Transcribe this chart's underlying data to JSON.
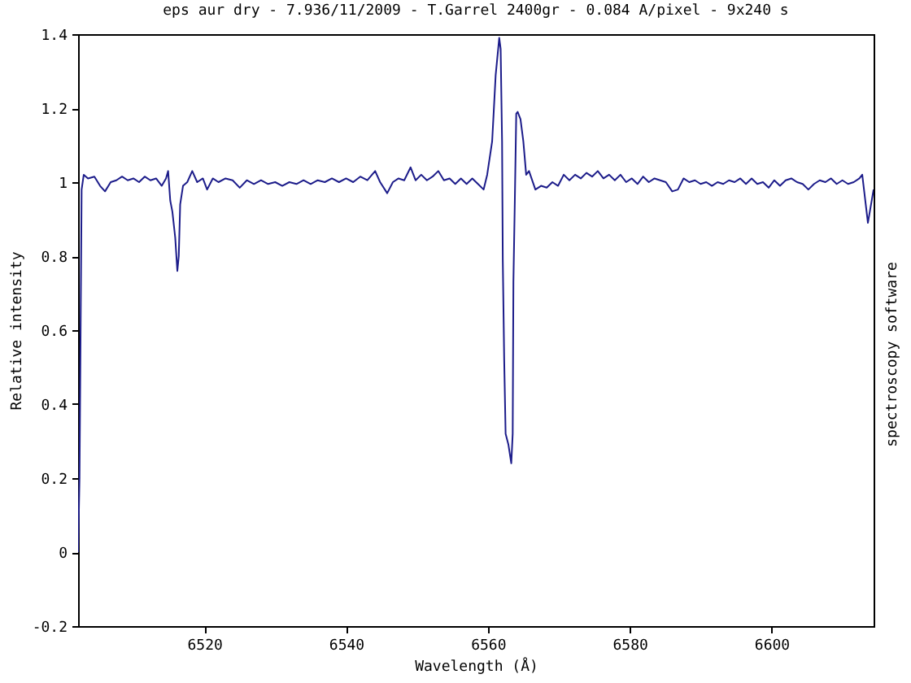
{
  "chart_data": {
    "type": "line",
    "title": "eps aur dry - 7.936/11/2009 - T.Garrel 2400gr - 0.084 A/pixel - 9x240 s",
    "xlabel": "Wavelength (Å)",
    "ylabel": "Relative intensity",
    "annotations": [
      "spectroscopy software"
    ],
    "x": [
      6502.2,
      6502.4,
      6502.7,
      6503.0,
      6503.6,
      6504.5,
      6505.3,
      6506.0,
      6506.8,
      6507.6,
      6508.4,
      6509.2,
      6510.0,
      6510.8,
      6511.6,
      6512.4,
      6513.2,
      6514.0,
      6514.6,
      6514.9,
      6515.2,
      6515.5,
      6515.9,
      6516.2,
      6516.4,
      6516.6,
      6517.0,
      6517.6,
      6518.3,
      6519.0,
      6519.8,
      6520.4,
      6521.2,
      6522.0,
      6523.0,
      6524.0,
      6525.0,
      6526.0,
      6527.0,
      6528.0,
      6529.0,
      6530.0,
      6531.0,
      6532.0,
      6533.0,
      6534.0,
      6535.0,
      6536.0,
      6537.0,
      6538.0,
      6539.0,
      6540.0,
      6541.0,
      6542.0,
      6543.0,
      6544.1,
      6544.8,
      6545.8,
      6546.6,
      6547.4,
      6548.2,
      6549.1,
      6549.8,
      6550.6,
      6551.4,
      6552.2,
      6553.0,
      6553.8,
      6554.6,
      6555.4,
      6556.2,
      6557.0,
      6557.8,
      6558.6,
      6559.4,
      6559.9,
      6560.6,
      6561.1,
      6561.6,
      6561.8,
      6562.0,
      6562.1,
      6562.3,
      6562.5,
      6562.9,
      6563.3,
      6563.5,
      6563.6,
      6563.8,
      6564.0,
      6564.2,
      6564.6,
      6565.0,
      6565.4,
      6565.8,
      6566.7,
      6567.5,
      6568.3,
      6569.1,
      6569.9,
      6570.7,
      6571.5,
      6572.3,
      6573.1,
      6573.9,
      6574.7,
      6575.5,
      6576.3,
      6577.1,
      6577.9,
      6578.7,
      6579.5,
      6580.3,
      6581.1,
      6581.9,
      6582.7,
      6583.5,
      6584.3,
      6585.1,
      6586.0,
      6586.8,
      6587.6,
      6588.4,
      6589.2,
      6590.0,
      6590.8,
      6591.6,
      6592.4,
      6593.2,
      6594.0,
      6594.8,
      6595.6,
      6596.4,
      6597.2,
      6598.0,
      6598.8,
      6599.6,
      6600.4,
      6601.2,
      6602.0,
      6602.8,
      6603.6,
      6604.4,
      6605.2,
      6606.0,
      6606.8,
      6607.6,
      6608.4,
      6609.2,
      6610.0,
      6610.8,
      6611.6,
      6612.4,
      6612.8,
      6613.6,
      6614.4
    ],
    "series": [
      {
        "color": "#1c1c8a",
        "values": [
          0.0,
          0.2,
          0.98,
          1.02,
          1.01,
          1.015,
          0.99,
          0.975,
          1.0,
          1.005,
          1.015,
          1.005,
          1.01,
          1.0,
          1.015,
          1.005,
          1.01,
          0.99,
          1.01,
          1.03,
          0.95,
          0.92,
          0.85,
          0.76,
          0.8,
          0.94,
          0.99,
          1.0,
          1.03,
          1.0,
          1.01,
          0.98,
          1.01,
          1.0,
          1.01,
          1.005,
          0.985,
          1.005,
          0.995,
          1.005,
          0.995,
          1.0,
          0.99,
          1.0,
          0.995,
          1.005,
          0.995,
          1.005,
          1.0,
          1.01,
          1.0,
          1.01,
          1.0,
          1.015,
          1.005,
          1.03,
          1.0,
          0.97,
          1.0,
          1.01,
          1.005,
          1.04,
          1.005,
          1.02,
          1.005,
          1.015,
          1.03,
          1.005,
          1.01,
          0.995,
          1.01,
          0.995,
          1.01,
          0.995,
          0.98,
          1.02,
          1.11,
          1.29,
          1.39,
          1.36,
          1.11,
          0.79,
          0.52,
          0.32,
          0.29,
          0.24,
          0.32,
          0.73,
          0.95,
          1.185,
          1.19,
          1.17,
          1.11,
          1.02,
          1.03,
          0.98,
          0.99,
          0.985,
          1.0,
          0.99,
          1.02,
          1.005,
          1.02,
          1.01,
          1.025,
          1.015,
          1.03,
          1.01,
          1.02,
          1.005,
          1.02,
          1.0,
          1.01,
          0.995,
          1.015,
          1.0,
          1.01,
          1.005,
          1.0,
          0.975,
          0.98,
          1.01,
          1.0,
          1.005,
          0.995,
          1.0,
          0.99,
          1.0,
          0.995,
          1.005,
          1.0,
          1.01,
          0.995,
          1.01,
          0.995,
          1.0,
          0.985,
          1.005,
          0.99,
          1.005,
          1.01,
          1.0,
          0.995,
          0.98,
          0.995,
          1.005,
          1.0,
          1.01,
          0.995,
          1.005,
          0.995,
          1.0,
          1.01,
          1.02,
          0.89,
          0.98
        ]
      }
    ],
    "xlim": [
      6502.2,
      6614.4
    ],
    "xticks": [
      6520,
      6540,
      6560,
      6580,
      6600
    ],
    "ylim": [
      -0.2,
      1.4
    ],
    "yticks": [
      -0.2,
      0,
      0.2,
      0.4,
      0.6,
      0.8,
      1,
      1.2,
      1.4
    ],
    "grid": false,
    "marker": "none",
    "line_style": "solid"
  }
}
